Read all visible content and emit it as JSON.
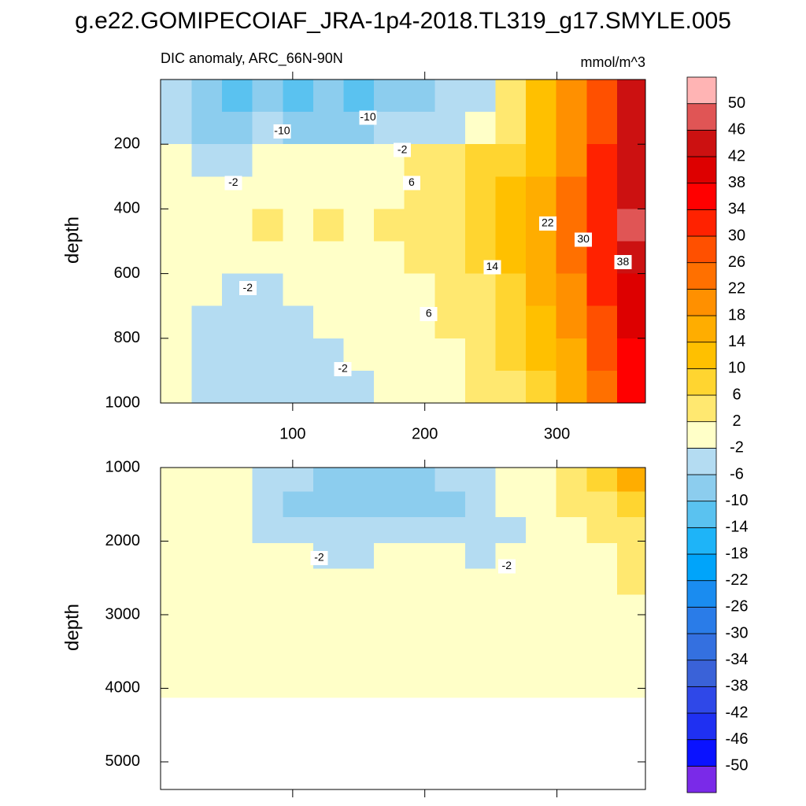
{
  "chart_data": [
    {
      "type": "heatmap",
      "title": "g.e22.GOMIPECOIAF_JRA-1p4-2018.TL319_g17.SMYLE.005",
      "subtitle": "DIC anomaly, ARC_66N-90N",
      "units": "mmol/m^3",
      "y_label": "depth",
      "xlim": [
        0,
        367
      ],
      "ylim": [
        0,
        1000
      ],
      "y_reversed": true,
      "xticks": [
        100,
        200,
        300
      ],
      "yticks": [
        200,
        400,
        600,
        800,
        1000
      ],
      "levels": [
        -50,
        -46,
        -42,
        -38,
        -34,
        -30,
        -26,
        -22,
        -18,
        -14,
        -10,
        -6,
        -2,
        2,
        6,
        10,
        14,
        18,
        22,
        26,
        30,
        34,
        38,
        42,
        46,
        50
      ],
      "colors": [
        "#7a2ae8",
        "#0a12ff",
        "#1f30f2",
        "#2f48e8",
        "#3a62d8",
        "#3470e0",
        "#2a7ce8",
        "#1a8cf0",
        "#00a4fa",
        "#1eb4f8",
        "#5ac2f0",
        "#8ccdee",
        "#b4dcf2",
        "#ffffc8",
        "#ffe870",
        "#ffd530",
        "#ffc000",
        "#ffad00",
        "#ff9000",
        "#ff7000",
        "#ff5000",
        "#ff2200",
        "#ff0000",
        "#dd0000",
        "#cc1111",
        "#e05555",
        "#ffb4b4"
      ],
      "x": [
        12,
        35,
        58,
        81,
        104,
        127,
        150,
        173,
        196,
        219,
        242,
        265,
        288,
        311,
        334,
        357
      ],
      "depth": [
        50,
        150,
        250,
        350,
        450,
        550,
        650,
        750,
        850,
        950
      ],
      "values": [
        [
          -4,
          -10,
          -12,
          -9,
          -12,
          -10,
          -11,
          -9,
          -7,
          -5,
          -3,
          3,
          10,
          18,
          28,
          44
        ],
        [
          -3,
          -7,
          -9,
          -6,
          -9,
          -7,
          -9,
          -6,
          -4,
          -3,
          1,
          5,
          11,
          19,
          29,
          42
        ],
        [
          0,
          -3,
          -4,
          -1,
          0,
          0,
          0,
          1,
          2,
          4,
          6,
          8,
          13,
          20,
          30,
          42
        ],
        [
          1,
          0,
          0,
          0,
          0,
          0,
          1,
          1,
          2,
          5,
          7,
          10,
          15,
          22,
          31,
          44
        ],
        [
          1,
          0,
          0,
          3,
          0,
          3,
          0,
          3,
          3,
          5,
          7,
          11,
          17,
          24,
          32,
          46
        ],
        [
          1,
          0,
          0,
          0,
          0,
          0,
          0,
          1,
          2,
          4,
          6,
          10,
          16,
          23,
          32,
          44
        ],
        [
          1,
          0,
          -3,
          -3,
          0,
          0,
          0,
          0,
          1,
          3,
          5,
          9,
          14,
          21,
          30,
          41
        ],
        [
          1,
          -3,
          -3,
          -4,
          -3,
          -1,
          0,
          0,
          1,
          2,
          4,
          7,
          12,
          19,
          28,
          39
        ],
        [
          1,
          -3,
          -3,
          -4,
          -4,
          -3,
          -1,
          0,
          0,
          1,
          3,
          6,
          11,
          17,
          26,
          37
        ],
        [
          1,
          -3,
          -4,
          -4,
          -4,
          -3,
          -3,
          0,
          0,
          1,
          2,
          5,
          9,
          15,
          24,
          35
        ]
      ],
      "contour_labels": [
        {
          "x": 92,
          "depth": 160,
          "label": -10
        },
        {
          "x": 157,
          "depth": 118,
          "label": -10
        },
        {
          "x": 55,
          "depth": 320,
          "label": -2
        },
        {
          "x": 183,
          "depth": 218,
          "label": -2
        },
        {
          "x": 190,
          "depth": 320,
          "label": 6
        },
        {
          "x": 293,
          "depth": 445,
          "label": 22
        },
        {
          "x": 320,
          "depth": 495,
          "label": 30
        },
        {
          "x": 350,
          "depth": 565,
          "label": 38
        },
        {
          "x": 251,
          "depth": 580,
          "label": 14
        },
        {
          "x": 203,
          "depth": 725,
          "label": 6
        },
        {
          "x": 66,
          "depth": 645,
          "label": -2
        },
        {
          "x": 138,
          "depth": 895,
          "label": -2
        }
      ]
    },
    {
      "type": "heatmap",
      "y_label": "depth",
      "xlim": [
        0,
        367
      ],
      "ylim": [
        1000,
        5375
      ],
      "y_reversed": true,
      "xticks": [
        100,
        200,
        300
      ],
      "yticks": [
        1000,
        2000,
        3000,
        4000,
        5000
      ],
      "x": [
        12,
        35,
        58,
        81,
        104,
        127,
        150,
        173,
        196,
        219,
        242,
        265,
        288,
        311,
        334,
        357
      ],
      "depth": [
        1150,
        1500,
        1850,
        2200,
        2550,
        2900,
        3250,
        3600,
        3950
      ],
      "values": [
        [
          0,
          0,
          0,
          -3,
          -6,
          -7,
          -7,
          -7,
          -7,
          -4,
          -3,
          0,
          1,
          3,
          6,
          14
        ],
        [
          0,
          0,
          0,
          -3,
          -7,
          -8,
          -8,
          -8,
          -8,
          -7,
          -3,
          0,
          0,
          2,
          4,
          8
        ],
        [
          0,
          0,
          0,
          -3,
          -4,
          -5,
          -5,
          -5,
          -4,
          -4,
          -3,
          -3,
          0,
          1,
          3,
          5
        ],
        [
          0,
          0,
          0,
          0,
          0,
          -3,
          -3,
          0,
          0,
          0,
          -3,
          0,
          0,
          0,
          1,
          3
        ],
        [
          0,
          0,
          0,
          0,
          0,
          0,
          0,
          0,
          0,
          0,
          0,
          0,
          0,
          0,
          1,
          2
        ],
        [
          0,
          0,
          0,
          0,
          0,
          0,
          0,
          0,
          0,
          0,
          0,
          0,
          0,
          0,
          0,
          1
        ],
        [
          0,
          0,
          0,
          0,
          0,
          0,
          0,
          0,
          0,
          0,
          0,
          0,
          0,
          0,
          0,
          0
        ],
        [
          0,
          0,
          0,
          0,
          0,
          0,
          0,
          0,
          0,
          0,
          0,
          0,
          0,
          0,
          0,
          0
        ],
        [
          0,
          0,
          0,
          0,
          0,
          0,
          0,
          0,
          0,
          0,
          0,
          0,
          0,
          0,
          0,
          0
        ]
      ],
      "contour_labels": [
        {
          "x": 120,
          "depth": 2230,
          "label": -2
        },
        {
          "x": 262,
          "depth": 2340,
          "label": -2
        }
      ]
    }
  ]
}
